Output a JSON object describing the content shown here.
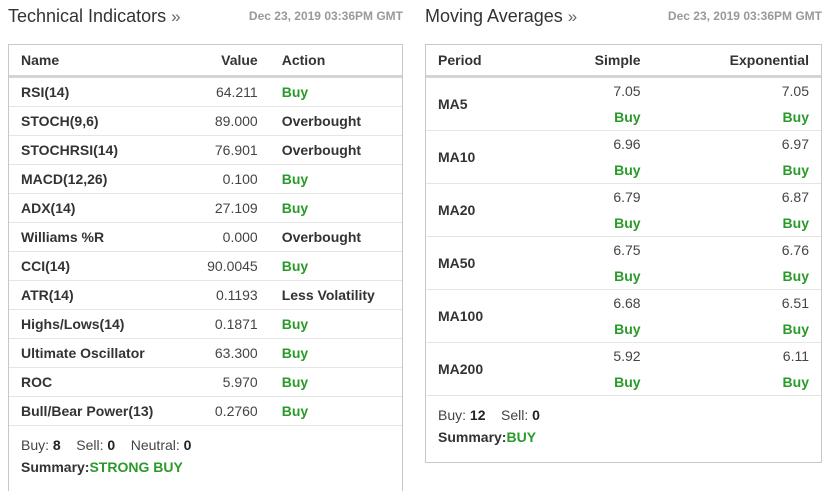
{
  "technical": {
    "title": "Technical Indicators",
    "title_suffix": "»",
    "date": "Dec 23, 2019 03:36PM GMT",
    "columns": [
      "Name",
      "Value",
      "Action"
    ],
    "rows": [
      {
        "name": "RSI(14)",
        "value": "64.211",
        "action": "Buy"
      },
      {
        "name": "STOCH(9,6)",
        "value": "89.000",
        "action": "Overbought"
      },
      {
        "name": "STOCHRSI(14)",
        "value": "76.901",
        "action": "Overbought"
      },
      {
        "name": "MACD(12,26)",
        "value": "0.100",
        "action": "Buy"
      },
      {
        "name": "ADX(14)",
        "value": "27.109",
        "action": "Buy"
      },
      {
        "name": "Williams %R",
        "value": "0.000",
        "action": "Overbought"
      },
      {
        "name": "CCI(14)",
        "value": "90.0045",
        "action": "Buy"
      },
      {
        "name": "ATR(14)",
        "value": "0.1193",
        "action": "Less Volatility"
      },
      {
        "name": "Highs/Lows(14)",
        "value": "0.1871",
        "action": "Buy"
      },
      {
        "name": "Ultimate Oscillator",
        "value": "63.300",
        "action": "Buy"
      },
      {
        "name": "ROC",
        "value": "5.970",
        "action": "Buy"
      },
      {
        "name": "Bull/Bear Power(13)",
        "value": "0.2760",
        "action": "Buy"
      }
    ],
    "footer": {
      "buy_label": "Buy:",
      "buy_count": "8",
      "sell_label": "Sell:",
      "sell_count": "0",
      "neutral_label": "Neutral:",
      "neutral_count": "0",
      "summary_label": "Summary:",
      "summary_value": "STRONG BUY"
    }
  },
  "moving_averages": {
    "title": "Moving Averages",
    "title_suffix": "»",
    "date": "Dec 23, 2019 03:36PM GMT",
    "columns": [
      "Period",
      "Simple",
      "Exponential"
    ],
    "rows": [
      {
        "period": "MA5",
        "simple_value": "7.05",
        "simple_action": "Buy",
        "exp_value": "7.05",
        "exp_action": "Buy"
      },
      {
        "period": "MA10",
        "simple_value": "6.96",
        "simple_action": "Buy",
        "exp_value": "6.97",
        "exp_action": "Buy"
      },
      {
        "period": "MA20",
        "simple_value": "6.79",
        "simple_action": "Buy",
        "exp_value": "6.87",
        "exp_action": "Buy"
      },
      {
        "period": "MA50",
        "simple_value": "6.75",
        "simple_action": "Buy",
        "exp_value": "6.76",
        "exp_action": "Buy"
      },
      {
        "period": "MA100",
        "simple_value": "6.68",
        "simple_action": "Buy",
        "exp_value": "6.51",
        "exp_action": "Buy"
      },
      {
        "period": "MA200",
        "simple_value": "5.92",
        "simple_action": "Buy",
        "exp_value": "6.11",
        "exp_action": "Buy"
      }
    ],
    "footer": {
      "buy_label": "Buy:",
      "buy_count": "12",
      "sell_label": "Sell:",
      "sell_count": "0",
      "summary_label": "Summary:",
      "summary_value": "BUY"
    }
  },
  "colors": {
    "buy": "#2a9a2a",
    "text": "#333333",
    "muted": "#999999",
    "border": "#c8c8c8"
  }
}
